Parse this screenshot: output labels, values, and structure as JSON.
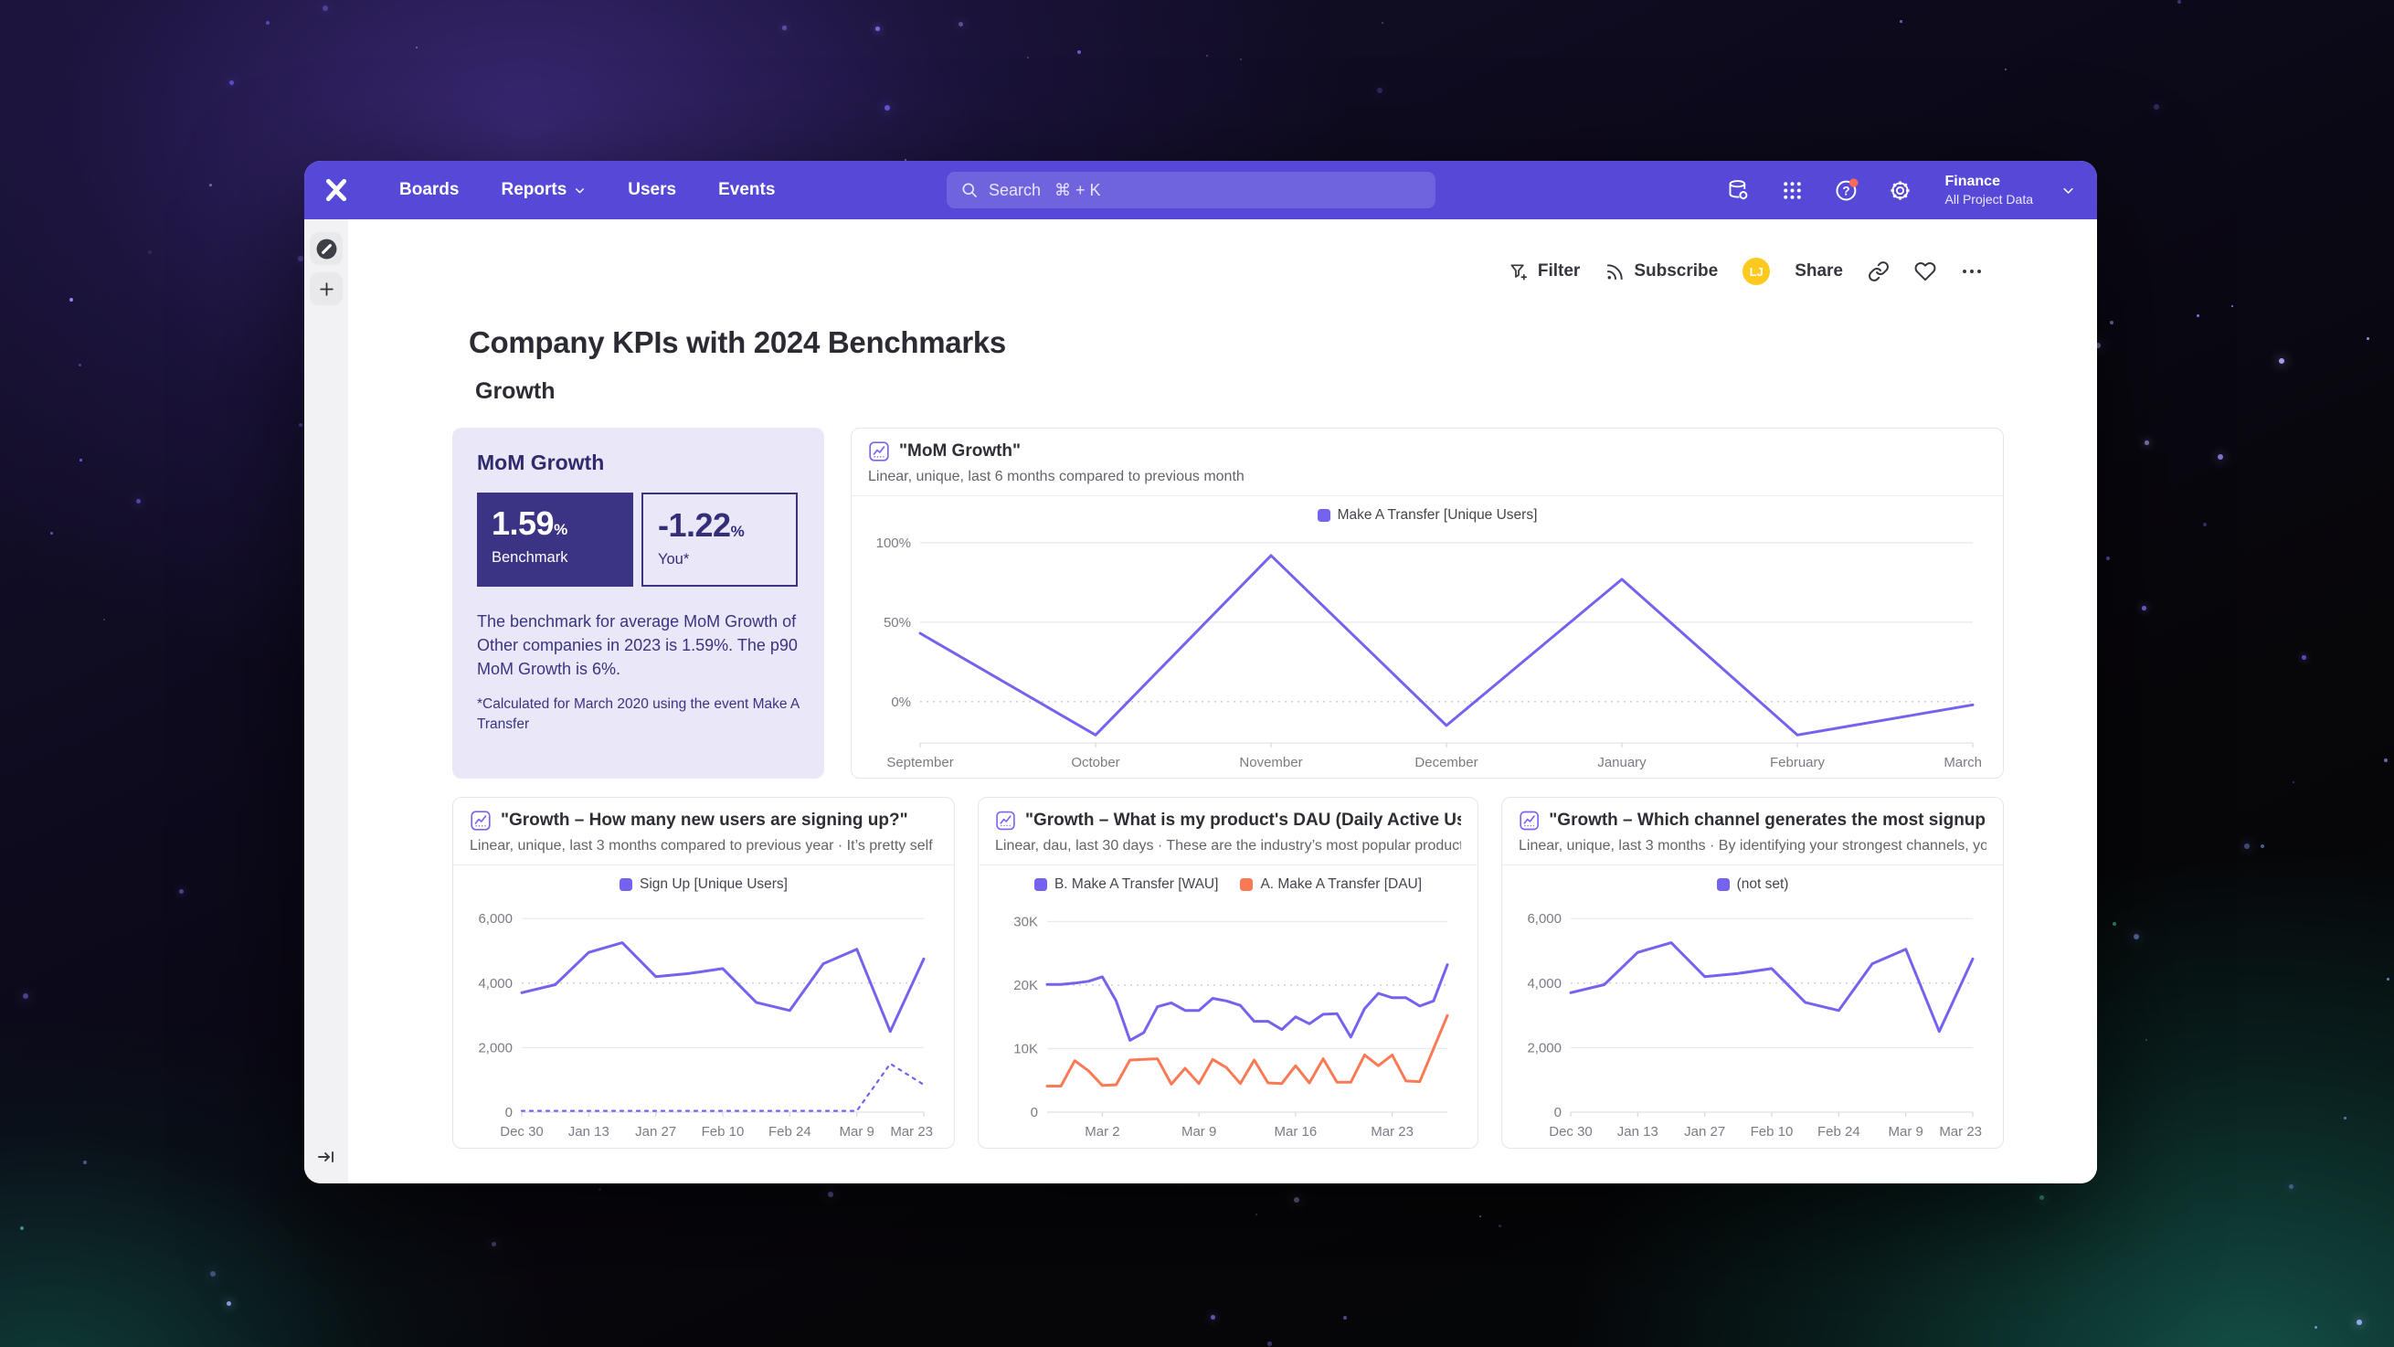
{
  "desktop": {
    "star_colors_purple": [
      "#8d7bff",
      "#6a5ae0",
      "#b9aaff",
      "#55459a",
      "#9a8cf2"
    ],
    "star_colors_teal": [
      "#58c8c0",
      "#7f9cf5",
      "#3fa8a0",
      "#9db4ff"
    ]
  },
  "nav": {
    "bar_color": "#5649d8",
    "brand_icon": "mixpanel-logo-icon",
    "items": [
      {
        "label": "Boards"
      },
      {
        "label": "Reports",
        "has_chevron": true
      },
      {
        "label": "Users"
      },
      {
        "label": "Events"
      }
    ],
    "search": {
      "label": "Search",
      "shortcut": "⌘ + K",
      "icon": "search-icon"
    },
    "right_icons": [
      "data-management-icon",
      "apps-grid-icon",
      "help-icon",
      "settings-gear-icon"
    ],
    "help_badge_color": "#ff6b57",
    "project": {
      "name": "Finance",
      "subtitle": "All Project Data"
    }
  },
  "sidebar": {
    "explore_icon": "compass-icon",
    "add_icon": "plus-icon",
    "collapse_icon": "expand-sidebar-icon"
  },
  "toolbar": {
    "filter_label": "Filter",
    "subscribe_label": "Subscribe",
    "share_label": "Share",
    "avatar_initials": "LJ",
    "avatar_color": "#ffc91d",
    "icons": [
      "funnel-plus-icon",
      "rss-icon",
      "link-icon",
      "heart-icon",
      "ellipsis-icon"
    ]
  },
  "page": {
    "title": "Company KPIs with 2024 Benchmarks",
    "section": "Growth"
  },
  "benchmark_card": {
    "title": "MoM Growth",
    "benchmark_value": "1.59",
    "benchmark_unit": "%",
    "benchmark_label": "Benchmark",
    "you_value": "-1.22",
    "you_unit": "%",
    "you_label": "You*",
    "description": "The benchmark for average MoM Growth of Other companies in 2023 is 1.59%. The p90 MoM Growth is 6%.",
    "footnote": "*Calculated for March 2020 using the event Make A Transfer",
    "dark_box_color": "#3b3383",
    "card_color": "#e9e7f8"
  },
  "chart_data": [
    {
      "type": "line",
      "title": "\"MoM Growth\"",
      "subtitle": "Linear, unique, last 6 months compared to previous month",
      "x_count": 7,
      "x_ticks": [
        {
          "index": 0,
          "label": "September"
        },
        {
          "index": 1,
          "label": "October"
        },
        {
          "index": 2,
          "label": "November"
        },
        {
          "index": 3,
          "label": "December"
        },
        {
          "index": 4,
          "label": "January"
        },
        {
          "index": 5,
          "label": "February"
        },
        {
          "index": 6,
          "label": "March"
        }
      ],
      "y_range": [
        -26,
        104
      ],
      "y_ticks": [
        {
          "value": 100,
          "label": "100%"
        },
        {
          "value": 50,
          "label": "50%"
        },
        {
          "value": 0,
          "label": "0%",
          "dashed": true
        }
      ],
      "legend": [
        {
          "name": "Make A Transfer [Unique Users]",
          "color": "#7463ee"
        }
      ],
      "series": [
        {
          "name": "Make A Transfer [Unique Users]",
          "color": "#7463ee",
          "values": [
            43,
            -21,
            92,
            -15,
            77,
            -21,
            -2
          ]
        }
      ]
    },
    {
      "type": "line",
      "title": "\"Growth – How many new users are signing up?\"",
      "subtitle": "Linear, unique, last 3 months compared to previous year · It’s pretty self ...",
      "x_count": 13,
      "x_ticks": [
        {
          "index": 0,
          "label": "Dec 30"
        },
        {
          "index": 2,
          "label": "Jan 13"
        },
        {
          "index": 4,
          "label": "Jan 27"
        },
        {
          "index": 6,
          "label": "Feb 10"
        },
        {
          "index": 8,
          "label": "Feb 24"
        },
        {
          "index": 10,
          "label": "Mar 9"
        },
        {
          "index": 12,
          "label": "Mar 23"
        }
      ],
      "y_range": [
        0,
        6400
      ],
      "y_ticks": [
        {
          "value": 6000,
          "label": "6,000"
        },
        {
          "value": 4000,
          "label": "4,000",
          "dashed": true
        },
        {
          "value": 2000,
          "label": "2,000"
        },
        {
          "value": 0,
          "label": "0"
        }
      ],
      "legend": [
        {
          "name": "Sign Up [Unique Users]",
          "color": "#7463ee"
        }
      ],
      "series": [
        {
          "name": "Sign Up [Unique Users]",
          "color": "#7463ee",
          "values": [
            3700,
            3950,
            4950,
            5250,
            4200,
            4300,
            4450,
            3400,
            3150,
            4600,
            5050,
            2500,
            4750
          ]
        },
        {
          "name": "previous year (comparison)",
          "color": "#7463ee",
          "style": "dotted",
          "values": [
            40,
            40,
            40,
            40,
            40,
            40,
            40,
            40,
            40,
            40,
            40,
            1500,
            850
          ]
        }
      ]
    },
    {
      "type": "line",
      "title": "\"Growth – What is my product's DAU (Daily Active Us...",
      "subtitle": "Linear, dau, last 30 days · These are the industry’s most popular product...",
      "x_count": 30,
      "x_ticks": [
        {
          "index": 4,
          "label": "Mar 2"
        },
        {
          "index": 11,
          "label": "Mar 9"
        },
        {
          "index": 18,
          "label": "Mar 16"
        },
        {
          "index": 25,
          "label": "Mar 23"
        }
      ],
      "y_range": [
        0,
        32500
      ],
      "y_ticks": [
        {
          "value": 30000,
          "label": "30K"
        },
        {
          "value": 20000,
          "label": "20K",
          "dashed": true
        },
        {
          "value": 10000,
          "label": "10K"
        },
        {
          "value": 0,
          "label": "0"
        }
      ],
      "legend": [
        {
          "name": "B. Make A Transfer [WAU]",
          "color": "#7463ee"
        },
        {
          "name": "A. Make A Transfer [DAU]",
          "color": "#fb7a55"
        }
      ],
      "series": [
        {
          "name": "B. Make A Transfer [WAU]",
          "color": "#7463ee",
          "values": [
            20100,
            20100,
            20300,
            20600,
            21300,
            17500,
            11300,
            12500,
            16600,
            17200,
            16000,
            16000,
            17900,
            17500,
            16800,
            14300,
            14300,
            13000,
            15000,
            13900,
            15400,
            15500,
            11800,
            16300,
            18700,
            18000,
            18000,
            16700,
            17500,
            23200
          ]
        },
        {
          "name": "A. Make A Transfer [DAU]",
          "color": "#fb7a55",
          "values": [
            4100,
            4100,
            8100,
            6500,
            4200,
            4300,
            8200,
            8300,
            8400,
            4400,
            6900,
            4500,
            8300,
            7000,
            4500,
            8200,
            4600,
            4500,
            7300,
            4600,
            8400,
            4700,
            4700,
            9000,
            7300,
            9000,
            4900,
            4800,
            10000,
            15200
          ]
        }
      ]
    },
    {
      "type": "line",
      "title": "\"Growth – Which channel generates the most signup...",
      "subtitle": "Linear, unique, last 3 months · By identifying your strongest channels, yo...",
      "x_count": 13,
      "x_ticks": [
        {
          "index": 0,
          "label": "Dec 30"
        },
        {
          "index": 2,
          "label": "Jan 13"
        },
        {
          "index": 4,
          "label": "Jan 27"
        },
        {
          "index": 6,
          "label": "Feb 10"
        },
        {
          "index": 8,
          "label": "Feb 24"
        },
        {
          "index": 10,
          "label": "Mar 9"
        },
        {
          "index": 12,
          "label": "Mar 23"
        }
      ],
      "y_range": [
        0,
        6400
      ],
      "y_ticks": [
        {
          "value": 6000,
          "label": "6,000"
        },
        {
          "value": 4000,
          "label": "4,000",
          "dashed": true
        },
        {
          "value": 2000,
          "label": "2,000"
        },
        {
          "value": 0,
          "label": "0"
        }
      ],
      "legend": [
        {
          "name": "(not set)",
          "color": "#7463ee"
        }
      ],
      "series": [
        {
          "name": "(not set)",
          "color": "#7463ee",
          "values": [
            3700,
            3950,
            4950,
            5250,
            4200,
            4300,
            4450,
            3400,
            3150,
            4600,
            5050,
            2500,
            4750
          ]
        }
      ]
    }
  ]
}
